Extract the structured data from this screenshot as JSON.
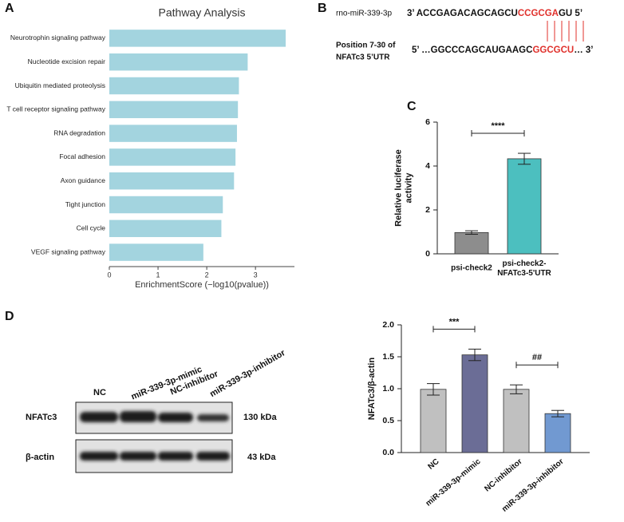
{
  "panel_labels": [
    "A",
    "B",
    "C",
    "D"
  ],
  "sequence": {
    "mirna_name": "rno-miR-339-3p",
    "mirna_left": "3’ ACCGAGACAGCAGCU",
    "mirna_seed": "CCGCGA",
    "mirna_right": "GU 5’",
    "target_name_lines": [
      "Position 7-30 of",
      "NFATc3 5’UTR"
    ],
    "target_left": "5’ …GGCCCAGCAUGAAGC",
    "target_seed": "GGCGCU",
    "target_right": "… 3’"
  },
  "blot": {
    "lanes": [
      "NC",
      "miR-339-3p-mimic",
      "NC-inhibitor",
      "miR-339-3p-inhibitor"
    ],
    "rows": [
      "NFATc3",
      "β-actin"
    ],
    "sizes": [
      "130 kDa",
      "43 kDa"
    ]
  },
  "chart_data": [
    {
      "type": "bar",
      "orientation": "horizontal",
      "title": "Pathway Analysis",
      "x_label": "EnrichmentScore (−log10(pvalue))",
      "categories": [
        "Neurotrophin signaling pathway",
        "Nucleotide excision repair",
        "Ubiquitin mediated proteolysis",
        "T cell receptor signaling pathway",
        "RNA degradation",
        "Focal adhesion",
        "Axon guidance",
        "Tight junction",
        "Cell cycle",
        "VEGF signaling pathway"
      ],
      "values": [
        3.62,
        2.84,
        2.66,
        2.64,
        2.62,
        2.59,
        2.56,
        2.33,
        2.3,
        1.93
      ],
      "color": "#a3d4df",
      "xlim": [
        0,
        3.8
      ],
      "xticks": [
        0,
        1,
        2,
        3
      ]
    },
    {
      "type": "bar",
      "y_label": "Relative luciferase\nactivity",
      "categories": [
        "psi-check2",
        "psi-check2-\nNFATc3-5'UTR"
      ],
      "values": [
        0.97,
        4.33
      ],
      "errors": [
        0.08,
        0.25
      ],
      "colors": [
        "#8d8d8d",
        "#4cbfbf"
      ],
      "ylim": [
        0,
        6
      ],
      "yticks": [
        0,
        2,
        4,
        6
      ],
      "annotations": [
        {
          "text": "****",
          "between": [
            0,
            1
          ]
        }
      ]
    },
    {
      "type": "bar",
      "y_label": "NFATc3/β-actin",
      "categories": [
        "NC",
        "miR-339-3p-mimic",
        "NC-inhibitor",
        "miR-339-3p-inhibitor"
      ],
      "values": [
        0.99,
        1.53,
        0.99,
        0.61
      ],
      "errors": [
        0.09,
        0.09,
        0.07,
        0.05
      ],
      "colors": [
        "#c0c0c0",
        "#6b6d96",
        "#c0c0c0",
        "#7199d1"
      ],
      "ylim": [
        0,
        2.0
      ],
      "yticks": [
        0,
        {
          "value": 0.5,
          "label": "0.5"
        },
        {
          "value": 1.0,
          "label": "1.0"
        },
        {
          "value": 1.5,
          "label": "1.5"
        },
        {
          "value": 2.0,
          "label": "2.0"
        }
      ],
      "yticks_zero_label": "0.0",
      "annotations": [
        {
          "text": "***",
          "between": [
            0,
            1
          ]
        },
        {
          "text": "##",
          "between": [
            2,
            3
          ]
        }
      ]
    }
  ]
}
